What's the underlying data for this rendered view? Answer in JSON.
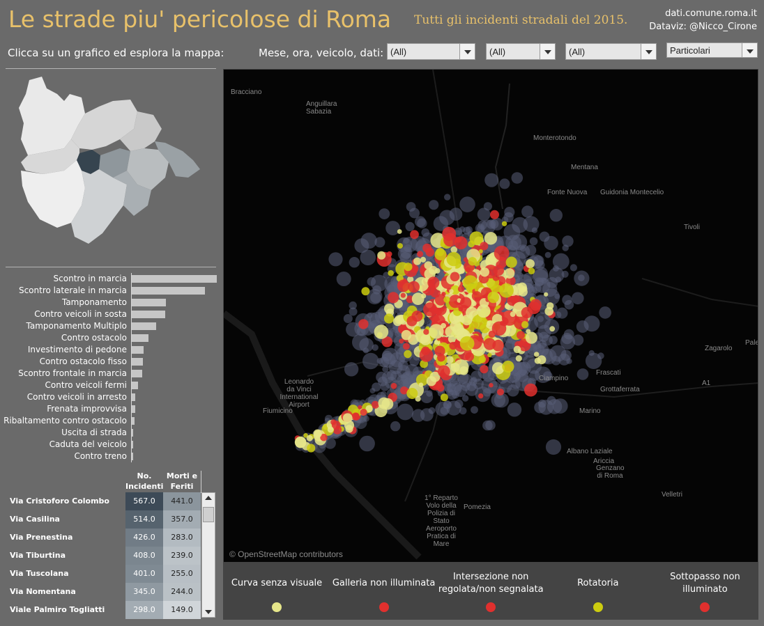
{
  "header": {
    "title": "Le strade piu' pericolose di Roma",
    "subtitle": "Tutti gli incidenti stradali del 2015.",
    "credit_line1": "dati.comune.roma.it",
    "credit_line2": "Dataviz: @Nicco_Cirone"
  },
  "toolbar": {
    "hint": "Clicca su un grafico ed esplora la mappa:",
    "filter_label": "Mese, ora, veicolo, dati:",
    "filters": [
      {
        "value": "(All)"
      },
      {
        "value": "(All)"
      },
      {
        "value": "(All)"
      },
      {
        "value": "Particolari"
      }
    ]
  },
  "accident_types": {
    "labels": [
      "Scontro in marcia",
      "Scontro laterale in marcia",
      "Tamponamento",
      "Contro veicoli in sosta",
      "Tamponamento Multiplo",
      "Contro ostacolo",
      "Investimento di pedone",
      "Contro ostacolo fisso",
      "Scontro frontale in marcia",
      "Contro veicoli fermi",
      "Contro veicoli in arresto",
      "Frenata improvvisa",
      "Ribaltamento contro ostacolo",
      "Uscita di strada",
      "Caduta del veicolo",
      "Contro treno"
    ],
    "relative_values": [
      1.0,
      0.86,
      0.4,
      0.39,
      0.29,
      0.2,
      0.14,
      0.13,
      0.12,
      0.07,
      0.04,
      0.04,
      0.03,
      0.02,
      0.015,
      0.01
    ]
  },
  "table": {
    "header_incidents": "No. Incidenti",
    "header_injured": "Morti e Feriti",
    "rows": [
      {
        "street": "Via Cristoforo Colombo",
        "incidents": "567.0",
        "injured": "441.0"
      },
      {
        "street": "Via Casilina",
        "incidents": "514.0",
        "injured": "357.0"
      },
      {
        "street": "Via Prenestina",
        "incidents": "426.0",
        "injured": "283.0"
      },
      {
        "street": "Via Tiburtina",
        "incidents": "408.0",
        "injured": "239.0"
      },
      {
        "street": "Via Tuscolana",
        "incidents": "401.0",
        "injured": "255.0"
      },
      {
        "street": "Via Nomentana",
        "incidents": "345.0",
        "injured": "244.0"
      },
      {
        "street": "Viale Palmiro Togliatti",
        "incidents": "298.0",
        "injured": "149.0"
      }
    ]
  },
  "map": {
    "attribution": "© OpenStreetMap contributors",
    "places": [
      "Bracciano",
      "Anguillara Sabazia",
      "Monterotondo",
      "Mentana",
      "Fonte Nuova",
      "Guidonia Montecelio",
      "Tivoli",
      "Zagarolo",
      "Pales",
      "A1",
      "Leonardo da Vinci International Airport",
      "Fiumicino",
      "Frascati",
      "Grottaferrata",
      "Marino",
      "Albano Laziale",
      "Ariccia",
      "Genzano di Roma",
      "Velletri",
      "Pomezia",
      "1° Reparto Volo della Polizia di Stato Aeroporto Pratica di Mare",
      "Ciampino"
    ]
  },
  "legend": {
    "items": [
      {
        "label": "Curva senza visuale",
        "color": "#e6e68a"
      },
      {
        "label": "Galleria non illuminata",
        "color": "#e0302e"
      },
      {
        "label": "Intersezione non regolata/non segnalata",
        "color": "#e0302e"
      },
      {
        "label": "Rotatoria",
        "color": "#cccc10"
      },
      {
        "label": "Sottopasso non illuminato",
        "color": "#e0302e"
      }
    ]
  }
}
